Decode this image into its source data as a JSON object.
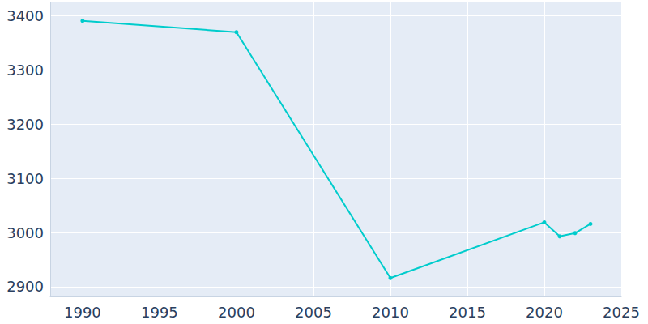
{
  "chart_data": {
    "type": "line",
    "x": [
      1990,
      2000,
      2010,
      2020,
      2021,
      2022,
      2023
    ],
    "values": [
      3391,
      3370,
      2916,
      3019,
      2993,
      2999,
      3016
    ],
    "color": "#00cccc",
    "marker": "circle",
    "xlim": [
      1987.9,
      2025
    ],
    "xticks": [
      1990,
      1995,
      2000,
      2005,
      2010,
      2015,
      2020,
      2025
    ],
    "ylim": [
      2882,
      3425
    ],
    "yticks": [
      2900,
      3000,
      3100,
      3200,
      3300,
      3400
    ],
    "grid": true
  }
}
